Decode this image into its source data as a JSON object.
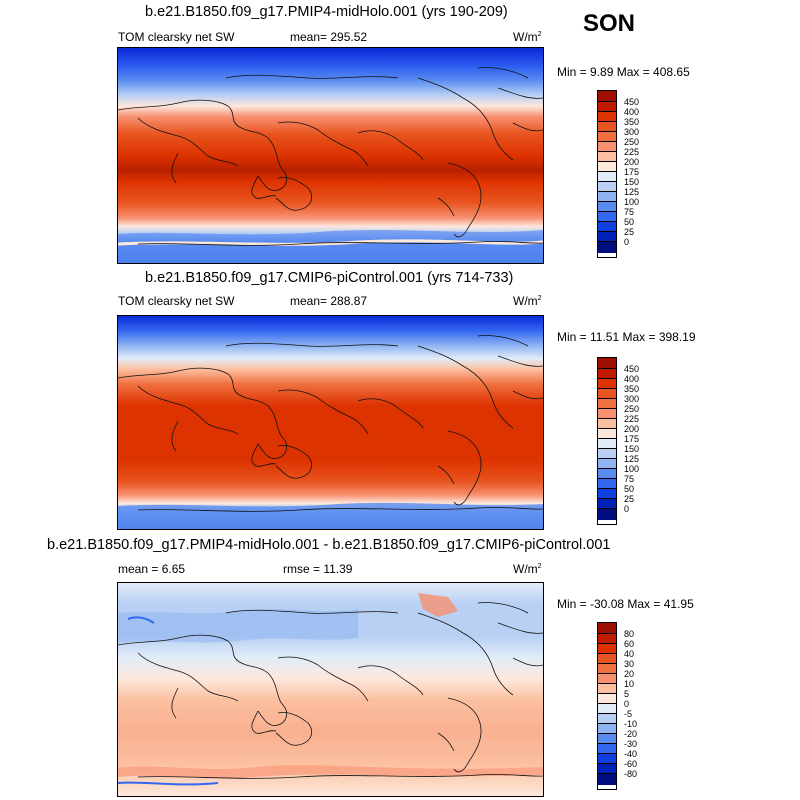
{
  "season": "SON",
  "panels": [
    {
      "title": "b.e21.B1850.f09_g17.PMIP4-midHolo.001 (yrs 190-209)",
      "left_label": "TOM clearsky net SW",
      "center_label": "mean= 295.52",
      "units": "W/m",
      "units_sup": "2",
      "minmax": "Min =   9.89 Max = 408.65",
      "colorbar_labels": [
        "450",
        "400",
        "350",
        "300",
        "250",
        "225",
        "200",
        "175",
        "150",
        "125",
        "100",
        "75",
        "50",
        "25",
        "0"
      ],
      "colorbar_colors": [
        "#a01000",
        "#c01a00",
        "#dd3300",
        "#e85520",
        "#f07040",
        "#f89070",
        "#fcc0a0",
        "#fde8dc",
        "#e2ecf8",
        "#b8d0f4",
        "#90b4f2",
        "#5a8cf0",
        "#3468f0",
        "#1040e0",
        "#0022b8",
        "#000e80"
      ]
    },
    {
      "title": "b.e21.B1850.f09_g17.CMIP6-piControl.001 (yrs 714-733)",
      "left_label": "TOM clearsky net SW",
      "center_label": "mean= 288.87",
      "units": "W/m",
      "units_sup": "2",
      "minmax": "Min =  11.51 Max = 398.19",
      "colorbar_labels": [
        "450",
        "400",
        "350",
        "300",
        "250",
        "225",
        "200",
        "175",
        "150",
        "125",
        "100",
        "75",
        "50",
        "25",
        "0"
      ],
      "colorbar_colors": [
        "#a01000",
        "#c01a00",
        "#dd3300",
        "#e85520",
        "#f07040",
        "#f89070",
        "#fcc0a0",
        "#fde8dc",
        "#e2ecf8",
        "#b8d0f4",
        "#90b4f2",
        "#5a8cf0",
        "#3468f0",
        "#1040e0",
        "#0022b8",
        "#000e80"
      ]
    },
    {
      "title": "b.e21.B1850.f09_g17.PMIP4-midHolo.001 - b.e21.B1850.f09_g17.CMIP6-piControl.001",
      "left_label": "mean =   6.65",
      "center_label": "rmse =  11.39",
      "units": "W/m",
      "units_sup": "2",
      "minmax": "Min = -30.08 Max =  41.95",
      "colorbar_labels": [
        "80",
        "60",
        "40",
        "30",
        "20",
        "10",
        "5",
        "0",
        "-5",
        "-10",
        "-20",
        "-30",
        "-40",
        "-60",
        "-80"
      ],
      "colorbar_colors": [
        "#a01000",
        "#c01a00",
        "#dd3300",
        "#e85520",
        "#f07040",
        "#f89070",
        "#fcc0a0",
        "#fde8dc",
        "#e2ecf8",
        "#b8d0f4",
        "#90b4f2",
        "#5a8cf0",
        "#3468f0",
        "#1040e0",
        "#0022b8",
        "#000e80"
      ]
    }
  ]
}
